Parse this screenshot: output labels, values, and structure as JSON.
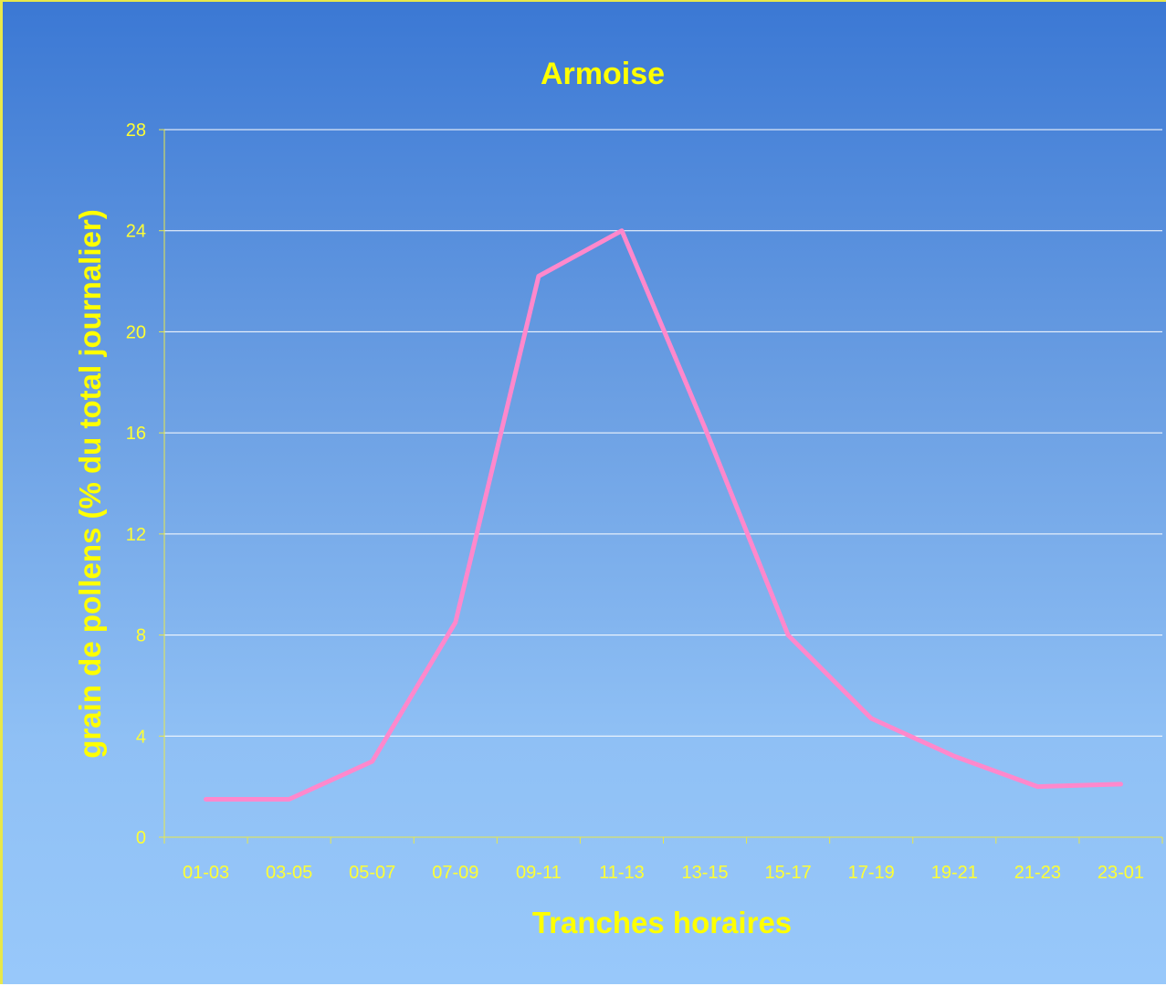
{
  "chart_data": {
    "type": "line",
    "title": "Armoise",
    "xlabel": "Tranches horaires",
    "ylabel": "grain de pollens (% du total journalier)",
    "categories": [
      "01-03",
      "03-05",
      "05-07",
      "07-09",
      "09-11",
      "11-13",
      "13-15",
      "15-17",
      "17-19",
      "19-21",
      "21-23",
      "23-01"
    ],
    "series": [
      {
        "values": [
          1.5,
          1.5,
          3.0,
          8.5,
          22.2,
          24.0,
          16.2,
          8.0,
          4.7,
          3.2,
          2.0,
          2.1
        ]
      }
    ],
    "ylim": [
      0,
      28
    ],
    "yticks": [
      0,
      4,
      8,
      12,
      16,
      20,
      24,
      28
    ],
    "grid": true,
    "legend": "none",
    "colors": {
      "line": "#ff88cc",
      "text": "#ffff00",
      "gridline": "#ffffff",
      "axis": "#e8e84a"
    }
  }
}
